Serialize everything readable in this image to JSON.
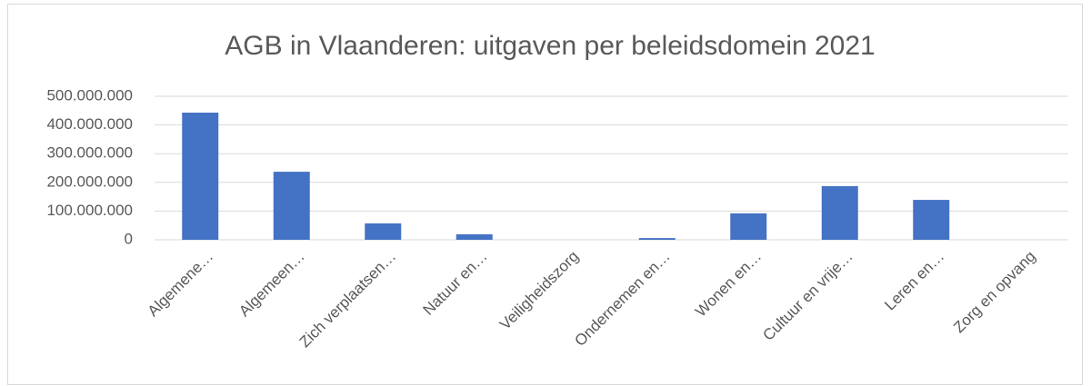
{
  "chart_data": {
    "type": "bar",
    "title": "AGB in Vlaanderen: uitgaven per beleidsdomein 2021",
    "categories": [
      "Algemene…",
      "Algemeen…",
      "Zich verplaatsen…",
      "Natuur en…",
      "Veiligheidszorg",
      "Ondernemen en…",
      "Wonen en…",
      "Cultuur en vrije…",
      "Leren en…",
      "Zorg en opvang"
    ],
    "values": [
      443000000,
      237000000,
      57000000,
      19000000,
      0,
      6000000,
      92000000,
      187000000,
      139000000,
      0
    ],
    "color": "#4472c4",
    "ylim": [
      0,
      500000000
    ],
    "yticks": [
      0,
      {
        "value": 100000000,
        "label": "100.000.000"
      },
      {
        "value": 200000000,
        "label": "200.000.000"
      },
      {
        "value": 300000000,
        "label": "300.000.000"
      },
      {
        "value": 400000000,
        "label": "400.000.000"
      },
      {
        "value": 500000000,
        "label": "500.000.000"
      }
    ],
    "grid": true
  }
}
